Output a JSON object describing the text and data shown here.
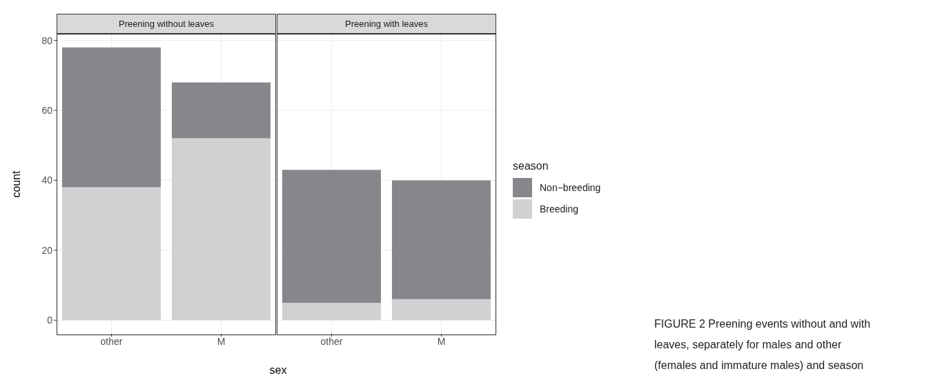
{
  "chart_data": [
    {
      "type": "bar",
      "title": "Preening without leaves",
      "xlabel": "sex",
      "ylabel": "count",
      "categories": [
        "other",
        "M"
      ],
      "stacked": true,
      "ylim": [
        -3.9,
        81.9
      ],
      "yticks": [
        0,
        20,
        40,
        60,
        80
      ],
      "grid": true,
      "legend": "right",
      "legend_title": "season",
      "series": [
        {
          "name": "Breeding",
          "color": "#d0d1d3",
          "values": [
            38,
            52
          ]
        },
        {
          "name": "Non−breeding",
          "color": "#86878b",
          "values": [
            40,
            16
          ]
        }
      ]
    },
    {
      "type": "bar",
      "title": "Preening with leaves",
      "categories": [
        "other",
        "M"
      ],
      "stacked": true,
      "ylim": [
        -3.9,
        81.9
      ],
      "yticks": [
        0,
        20,
        40,
        60,
        80
      ],
      "grid": true,
      "tick_labels": "x",
      "annotations": [
        "FIGURE 2 Preening events without and with leaves, separately for males and other (females and immature males) and season"
      ],
      "series": [
        {
          "color": "#d0d1d3",
          "values": [
            5,
            6
          ]
        },
        {
          "color": "#86878b",
          "values": [
            38,
            34
          ]
        }
      ]
    }
  ]
}
